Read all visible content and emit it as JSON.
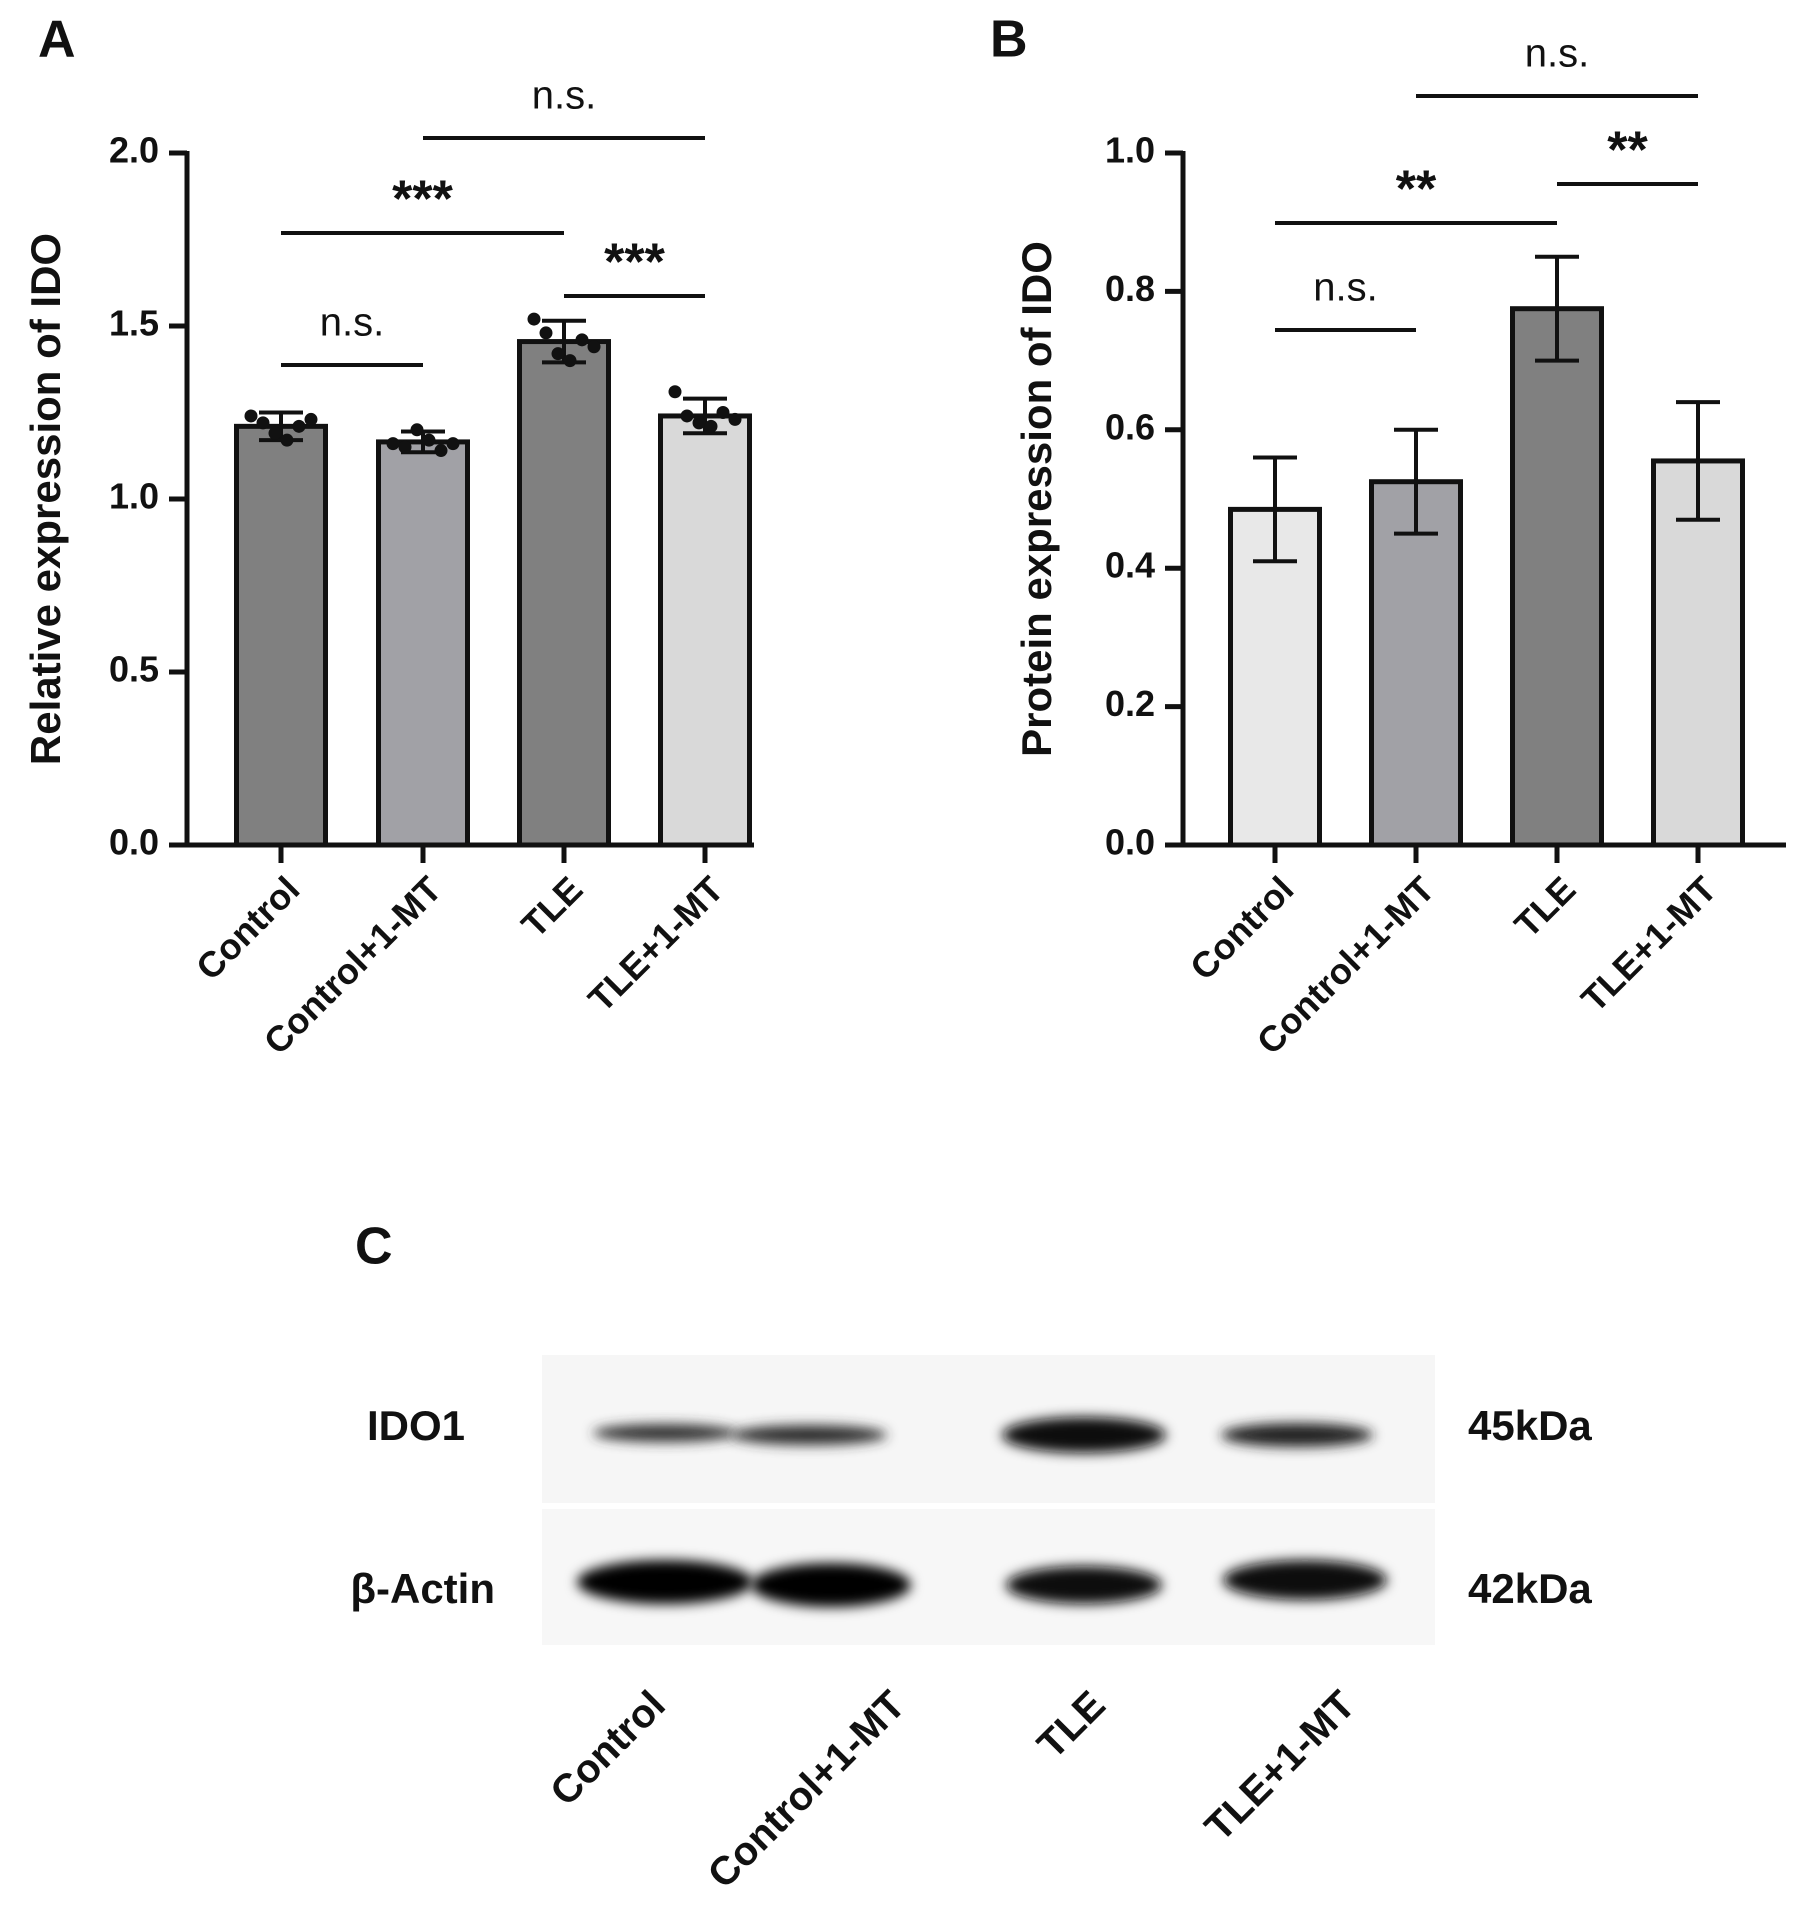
{
  "chart_data": [
    {
      "type": "bar",
      "panel": "A",
      "y_label": "Relative expression of IDO",
      "categories": [
        "Control",
        "Control+1-MT",
        "TLE",
        "TLE+1-MT"
      ],
      "values": [
        1.21,
        1.165,
        1.455,
        1.24
      ],
      "errors": [
        0.04,
        0.03,
        0.06,
        0.05
      ],
      "points": [
        [
          1.24,
          1.22,
          1.19,
          1.17,
          1.21,
          1.23
        ],
        [
          1.16,
          1.15,
          1.2,
          1.17,
          1.14,
          1.16
        ],
        [
          1.52,
          1.48,
          1.42,
          1.4,
          1.46,
          1.44
        ],
        [
          1.31,
          1.24,
          1.22,
          1.21,
          1.25,
          1.23
        ]
      ],
      "colors": [
        "#808080",
        "#a1a1a6",
        "#808080",
        "#d9d9d9"
      ],
      "ylim": [
        0,
        2
      ],
      "yticks": [
        {
          "value": 0,
          "label": "0.0"
        },
        0.5,
        {
          "value": 1,
          "label": "1.0"
        },
        1.5,
        {
          "value": 2,
          "label": "2.0"
        }
      ],
      "annotations": [
        {
          "label": "n.s.",
          "groups": [
            "Control",
            "Control+1-MT"
          ]
        },
        {
          "label": "***",
          "groups": [
            "Control",
            "TLE"
          ]
        },
        {
          "label": "***",
          "groups": [
            "TLE",
            "TLE+1-MT"
          ]
        },
        {
          "label": "n.s.",
          "groups": [
            "Control+1-MT",
            "TLE+1-MT"
          ]
        }
      ]
    },
    {
      "type": "bar",
      "panel": "B",
      "y_label": "Protein expression of IDO",
      "categories": [
        "Control",
        "Control+1-MT",
        "TLE",
        "TLE+1-MT"
      ],
      "values": [
        0.485,
        0.525,
        0.775,
        0.555
      ],
      "errors": [
        0.075,
        0.075,
        0.075,
        0.085
      ],
      "colors": [
        "#e8e8e8",
        "#a1a1a6",
        "#808080",
        "#d9d9d9"
      ],
      "ylim": [
        0,
        1
      ],
      "yticks": [
        {
          "value": 0,
          "label": "0.0"
        },
        0.2,
        0.4,
        0.6,
        0.8,
        {
          "value": 1,
          "label": "1.0"
        }
      ],
      "annotations": [
        {
          "label": "n.s.",
          "groups": [
            "Control",
            "Control+1-MT"
          ]
        },
        {
          "label": "**",
          "groups": [
            "Control",
            "TLE"
          ]
        },
        {
          "label": "**",
          "groups": [
            "TLE",
            "TLE+1-MT"
          ]
        },
        {
          "label": "n.s.",
          "groups": [
            "Control+1-MT",
            "TLE+1-MT"
          ]
        }
      ]
    }
  ],
  "blot": {
    "panel": "C",
    "rows": [
      {
        "label": "IDO1",
        "size": "45kDa"
      },
      {
        "label": "β-Actin",
        "size": "42kDa"
      }
    ],
    "lanes": [
      "Control",
      "Control+1-MT",
      "TLE",
      "TLE+1-MT"
    ]
  }
}
